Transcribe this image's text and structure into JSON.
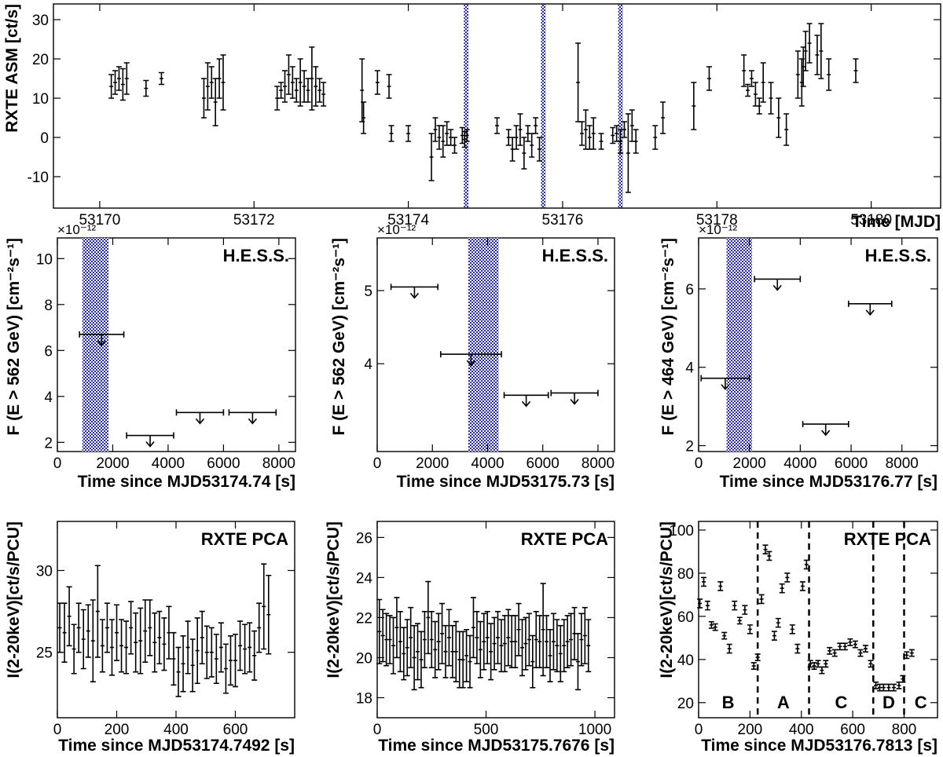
{
  "colors": {
    "band": "#2a2f8f",
    "marker": "#000000"
  },
  "chart_data": [
    {
      "id": "asm",
      "type": "scatter",
      "title": "",
      "xlabel": "Time [MJD]",
      "ylabel": "RXTE ASM [ct/s]",
      "xlim": [
        53169.4,
        53180.9
      ],
      "ylim": [
        -18,
        34
      ],
      "xticks": [
        53170,
        53172,
        53174,
        53176,
        53178,
        53180
      ],
      "xticklabels": [
        "53170",
        "53172",
        "53174",
        "53176",
        "53178",
        "53180"
      ],
      "yticks": [
        -10,
        0,
        10,
        20,
        30
      ],
      "yticklabels": [
        "-10",
        "0",
        "10",
        "20",
        "30"
      ],
      "bands": [
        [
          53174.72,
          53174.78
        ],
        [
          53175.72,
          53175.78
        ],
        [
          53176.72,
          53176.78
        ]
      ],
      "x": [
        53170.15,
        53170.2,
        53170.25,
        53170.3,
        53170.35,
        53170.6,
        53170.8,
        53171.35,
        53171.4,
        53171.45,
        53171.5,
        53171.55,
        53171.6,
        53172.3,
        53172.35,
        53172.4,
        53172.45,
        53172.5,
        53172.55,
        53172.6,
        53172.65,
        53172.7,
        53172.75,
        53172.8,
        53172.85,
        53172.9,
        53173.4,
        53173.42,
        53173.6,
        53173.75,
        53173.78,
        53174.0,
        53174.3,
        53174.35,
        53174.4,
        53174.45,
        53174.5,
        53174.55,
        53174.6,
        53174.7,
        53174.73,
        53174.76,
        53175.15,
        53175.3,
        53175.35,
        53175.4,
        53175.45,
        53175.5,
        53175.55,
        53175.6,
        53175.65,
        53175.7,
        53176.2,
        53176.25,
        53176.3,
        53176.35,
        53176.4,
        53176.5,
        53176.65,
        53176.7,
        53176.75,
        53176.8,
        53176.85,
        53176.9,
        53176.95,
        53177.2,
        53177.3,
        53177.7,
        53177.9,
        53178.35,
        53178.4,
        53178.45,
        53178.5,
        53178.55,
        53178.6,
        53178.7,
        53178.8,
        53178.9,
        53179.05,
        53179.1,
        53179.12,
        53179.15,
        53179.2,
        53179.3,
        53179.35,
        53179.45,
        53179.8
      ],
      "y": [
        13,
        14,
        15,
        13.5,
        15,
        12.5,
        15,
        10,
        13,
        14,
        9,
        15,
        14,
        10,
        12,
        13,
        16,
        14,
        12,
        14,
        13,
        12,
        15,
        13,
        12,
        11,
        12,
        5,
        14,
        13,
        1,
        1,
        -5,
        2,
        0,
        -1,
        1,
        0,
        -2,
        0.5,
        -0.5,
        0.5,
        3,
        0,
        -3,
        0,
        2,
        -4,
        1,
        -2,
        3,
        -3,
        14,
        1,
        2,
        0,
        1,
        -1,
        0.5,
        1,
        -1,
        2,
        -4,
        3,
        -1,
        0,
        5,
        8,
        15,
        17,
        12,
        15,
        11,
        8,
        14,
        10,
        5,
        2,
        16,
        14,
        18,
        22,
        24,
        21,
        22,
        16,
        17
      ],
      "yerr": [
        3,
        3,
        3,
        4,
        4,
        2,
        1.5,
        5,
        6,
        4,
        6,
        5,
        7,
        3,
        2,
        4,
        5,
        4,
        3,
        6,
        4,
        3,
        8,
        5,
        3,
        3,
        8,
        4,
        3,
        3,
        2,
        2,
        6,
        3,
        3,
        4,
        3,
        2,
        2,
        2,
        2,
        1.5,
        2,
        2,
        3,
        3,
        4,
        4,
        2,
        3,
        2,
        3,
        10,
        3,
        5,
        3,
        4,
        2,
        2,
        2,
        3,
        2,
        10,
        4,
        3,
        3,
        4,
        6,
        3,
        4,
        1.5,
        2,
        3,
        2,
        5,
        4,
        5,
        4,
        6,
        6,
        5,
        5,
        5,
        5,
        7,
        4,
        3
      ]
    },
    {
      "id": "hess1",
      "type": "upper-limit",
      "title": "H.E.S.S.",
      "xlabel": "Time since MJD53174.74 [s]",
      "ylabel": "F (E > 562 GeV) [cm⁻²s⁻¹]",
      "scale_label": "×10⁻¹²",
      "xlim": [
        0,
        8600
      ],
      "ylim": [
        1.6,
        10.9
      ],
      "xticks": [
        0,
        2000,
        4000,
        6000,
        8000
      ],
      "xticklabels": [
        "0",
        "2000",
        "4000",
        "6000",
        "8000"
      ],
      "yticks": [
        2,
        4,
        6,
        8,
        10
      ],
      "yticklabels": [
        "2",
        "4",
        "6",
        "8",
        "10"
      ],
      "bands": [
        [
          900,
          1850
        ]
      ],
      "limits": [
        {
          "x0": 800,
          "x1": 2400,
          "y": 6.7
        },
        {
          "x0": 2500,
          "x1": 4200,
          "y": 2.3
        },
        {
          "x0": 4300,
          "x1": 6000,
          "y": 3.3
        },
        {
          "x0": 6200,
          "x1": 7900,
          "y": 3.3
        }
      ]
    },
    {
      "id": "hess2",
      "type": "upper-limit",
      "title": "H.E.S.S.",
      "xlabel": "Time since MJD53175.73 [s]",
      "ylabel": "F (E > 562 GeV) [cm⁻²s⁻¹]",
      "scale_label": "×10⁻¹²",
      "xlim": [
        0,
        8600
      ],
      "ylim": [
        2.8,
        5.72
      ],
      "xticks": [
        0,
        2000,
        4000,
        6000,
        8000
      ],
      "xticklabels": [
        "0",
        "2000",
        "4000",
        "6000",
        "8000"
      ],
      "yticks": [
        4,
        5
      ],
      "yticklabels": [
        "4",
        "5"
      ],
      "bands": [
        [
          3300,
          4400
        ]
      ],
      "limits": [
        {
          "x0": 500,
          "x1": 2200,
          "y": 5.05
        },
        {
          "x0": 2300,
          "x1": 4500,
          "y": 4.13
        },
        {
          "x0": 4600,
          "x1": 6200,
          "y": 3.57
        },
        {
          "x0": 6300,
          "x1": 8000,
          "y": 3.6
        }
      ]
    },
    {
      "id": "hess3",
      "type": "upper-limit",
      "title": "H.E.S.S.",
      "xlabel": "Time since MJD53176.77 [s]",
      "ylabel": "F (E > 464 GeV) [cm⁻²s⁻¹]",
      "scale_label": "×10⁻¹²",
      "xlim": [
        0,
        9400
      ],
      "ylim": [
        1.85,
        7.3
      ],
      "xticks": [
        0,
        2000,
        4000,
        6000,
        8000
      ],
      "xticklabels": [
        "0",
        "2000",
        "4000",
        "6000",
        "8000"
      ],
      "yticks": [
        2,
        4,
        6
      ],
      "yticklabels": [
        "2",
        "4",
        "6"
      ],
      "bands": [
        [
          1100,
          2100
        ]
      ],
      "limits": [
        {
          "x0": 100,
          "x1": 2000,
          "y": 3.72
        },
        {
          "x0": 2200,
          "x1": 4000,
          "y": 6.25
        },
        {
          "x0": 4100,
          "x1": 5900,
          "y": 2.55
        },
        {
          "x0": 5900,
          "x1": 7600,
          "y": 5.62
        }
      ]
    },
    {
      "id": "pca1",
      "type": "scatter",
      "title": "RXTE PCA",
      "xlabel": "Time since MJD53174.7492 [s]",
      "ylabel": "I(2-20keV)[ct/s/PCU]",
      "xlim": [
        0,
        800
      ],
      "ylim": [
        21,
        33
      ],
      "xticks": [
        0,
        200,
        400,
        600
      ],
      "xticklabels": [
        "0",
        "200",
        "400",
        "600"
      ],
      "yticks": [
        25,
        30
      ],
      "yticklabels": [
        "25",
        "30"
      ],
      "x": [
        8,
        24,
        40,
        56,
        72,
        88,
        104,
        120,
        136,
        152,
        168,
        184,
        200,
        216,
        232,
        248,
        264,
        280,
        296,
        312,
        328,
        344,
        360,
        376,
        392,
        408,
        424,
        440,
        456,
        472,
        488,
        504,
        520,
        536,
        552,
        568,
        584,
        600,
        616,
        632,
        648,
        664,
        680,
        696,
        712
      ],
      "y": [
        26.5,
        26.2,
        27.2,
        25.2,
        26.5,
        25.8,
        26.3,
        25.7,
        27.5,
        25.4,
        26.5,
        25.3,
        26.2,
        25.4,
        25.3,
        26.5,
        25.6,
        25.7,
        26.3,
        26.5,
        25.6,
        25.9,
        25.5,
        26.2,
        24.6,
        23.8,
        24.3,
        25.3,
        24.2,
        25.1,
        25.9,
        25.0,
        25.0,
        24.6,
        25.3,
        24.0,
        24.5,
        24.5,
        25.4,
        25.2,
        25.3,
        24.8,
        26.5,
        27.8,
        27.3
      ],
      "yerr": [
        1.5,
        1.8,
        1.8,
        1.5,
        1.5,
        1.8,
        1.6,
        2.5,
        2.8,
        1.6,
        1.5,
        1.7,
        1.7,
        1.6,
        1.6,
        1.6,
        1.8,
        2.0,
        1.9,
        1.7,
        1.8,
        1.6,
        1.6,
        1.6,
        1.6,
        1.5,
        1.7,
        1.6,
        1.6,
        2.0,
        1.6,
        1.6,
        1.5,
        1.5,
        1.5,
        1.5,
        1.5,
        1.6,
        1.5,
        1.5,
        1.5,
        1.5,
        1.5,
        2.6,
        2.4
      ]
    },
    {
      "id": "pca2",
      "type": "scatter",
      "title": "RXTE PCA",
      "xlabel": "Time since MJD53175.7676 [s]",
      "ylabel": "I(2-20keV)[ct/s/PCU]",
      "xlim": [
        0,
        1090
      ],
      "ylim": [
        17,
        26.8
      ],
      "xticks": [
        0,
        500,
        1000
      ],
      "xticklabels": [
        "0",
        "500",
        "1000"
      ],
      "yticks": [
        18,
        20,
        22,
        24,
        26
      ],
      "yticklabels": [
        "18",
        "20",
        "22",
        "24",
        "26"
      ],
      "x": [
        10,
        26,
        42,
        58,
        74,
        90,
        106,
        122,
        138,
        154,
        170,
        186,
        202,
        218,
        234,
        250,
        266,
        282,
        298,
        314,
        330,
        346,
        362,
        378,
        394,
        410,
        426,
        442,
        458,
        474,
        490,
        506,
        522,
        538,
        554,
        570,
        586,
        602,
        618,
        634,
        650,
        666,
        682,
        698,
        714,
        730,
        746,
        762,
        778,
        794,
        810,
        826,
        842,
        858,
        874,
        890,
        906,
        922,
        938,
        954,
        970
      ],
      "y": [
        21.3,
        21.1,
        20.9,
        20.9,
        20.6,
        21.5,
        20.8,
        20.2,
        20.5,
        21.0,
        20.0,
        20.3,
        19.9,
        20.9,
        22.0,
        20.9,
        20.4,
        20.8,
        21.2,
        20.3,
        21.0,
        20.3,
        20.3,
        19.9,
        19.9,
        20.1,
        19.8,
        21.5,
        21.0,
        20.4,
        20.8,
        21.0,
        20.3,
        20.7,
        21.0,
        20.6,
        20.7,
        21.0,
        20.8,
        20.8,
        21.4,
        20.5,
        20.7,
        20.9,
        19.8,
        20.9,
        20.8,
        21.4,
        20.8,
        20.1,
        20.8,
        20.6,
        20.2,
        20.6,
        20.8,
        20.9,
        21.2,
        19.8,
        20.9,
        21.1,
        20.6
      ],
      "yerr": [
        1.6,
        1.3,
        1.3,
        1.2,
        1.4,
        1.5,
        1.5,
        1.3,
        1.4,
        1.5,
        1.6,
        1.4,
        1.4,
        1.4,
        1.8,
        1.4,
        1.4,
        1.4,
        1.5,
        1.3,
        1.4,
        1.3,
        1.5,
        1.4,
        1.4,
        1.3,
        1.3,
        1.5,
        1.3,
        1.4,
        1.4,
        1.3,
        1.4,
        1.3,
        1.3,
        1.3,
        1.4,
        1.4,
        1.3,
        1.3,
        1.3,
        1.4,
        1.3,
        1.3,
        1.3,
        1.4,
        1.3,
        2.3,
        1.3,
        1.3,
        1.4,
        1.3,
        1.4,
        1.3,
        1.3,
        1.3,
        1.3,
        1.4,
        1.3,
        1.4,
        1.3
      ]
    },
    {
      "id": "pca3",
      "type": "scatter",
      "title": "RXTE PCA",
      "xlabel": "Time since MJD53176.7813 [s]",
      "ylabel": "I(2-20keV)[ct/s/PCU]",
      "xlim": [
        0,
        930
      ],
      "ylim": [
        13,
        104
      ],
      "xticks": [
        0,
        200,
        400,
        600,
        800
      ],
      "xticklabels": [
        "0",
        "200",
        "400",
        "600",
        "800"
      ],
      "yticks": [
        20,
        40,
        60,
        80,
        100
      ],
      "yticklabels": [
        "20",
        "40",
        "60",
        "80",
        "100"
      ],
      "dividers": [
        230,
        430,
        680,
        800
      ],
      "segments": [
        {
          "label": "B",
          "x": 115
        },
        {
          "label": "A",
          "x": 330
        },
        {
          "label": "C",
          "x": 555
        },
        {
          "label": "D",
          "x": 740
        },
        {
          "label": "C",
          "x": 865
        }
      ],
      "x": [
        5,
        20,
        35,
        50,
        65,
        85,
        100,
        120,
        140,
        160,
        180,
        200,
        215,
        230,
        245,
        260,
        275,
        295,
        310,
        325,
        345,
        365,
        385,
        405,
        420,
        435,
        450,
        465,
        480,
        495,
        510,
        530,
        550,
        570,
        590,
        610,
        630,
        650,
        670,
        690,
        705,
        720,
        740,
        760,
        780,
        795,
        810,
        830
      ],
      "y": [
        66,
        76,
        65,
        56,
        55,
        74,
        51,
        45,
        65,
        58,
        63,
        54,
        37,
        41,
        68,
        91,
        88,
        51,
        57,
        73,
        78,
        54,
        45,
        74,
        84,
        38,
        37,
        38,
        35,
        38,
        44,
        43,
        46,
        46,
        48,
        47,
        43,
        45,
        38,
        28,
        27,
        27,
        27,
        27,
        28,
        31,
        42,
        43
      ],
      "yerr": [
        2,
        2,
        2,
        1.5,
        1.5,
        2,
        1.5,
        2,
        2,
        1.5,
        2,
        2,
        1.5,
        1.5,
        2,
        2,
        2,
        2,
        2,
        2,
        2,
        2,
        2,
        2,
        2,
        1.5,
        1.5,
        1.5,
        1.5,
        1.5,
        1.5,
        1.5,
        1.5,
        1.5,
        1.5,
        1.5,
        1.5,
        1.5,
        1.5,
        1.5,
        1.5,
        1.5,
        1.5,
        1.5,
        1.5,
        1.5,
        1.5,
        1.5
      ]
    }
  ]
}
